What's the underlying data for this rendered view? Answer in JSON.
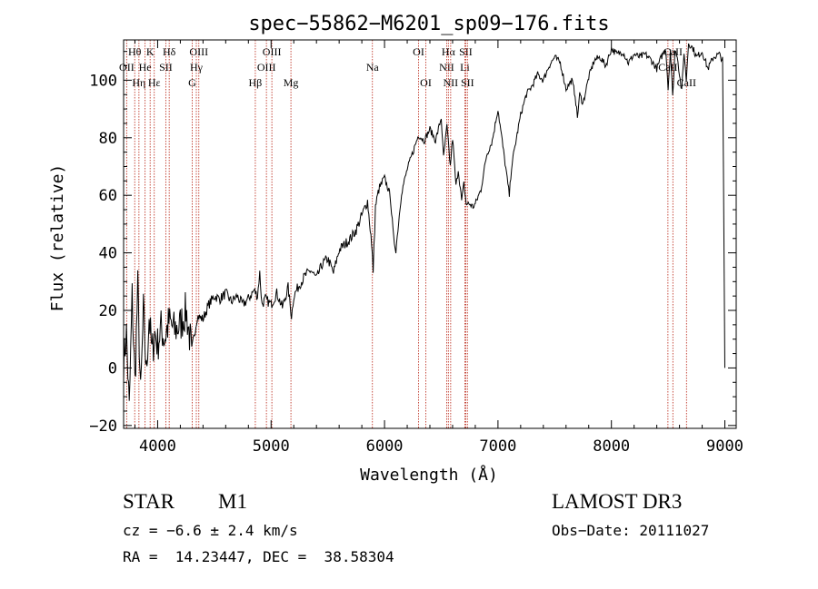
{
  "chart_data": {
    "type": "line",
    "title": "spec−55862−M6201_sp09−176.fits",
    "xlabel": "Wavelength (Å)",
    "ylabel": "Flux (relative)",
    "xlim": [
      3700,
      9100
    ],
    "ylim": [
      -21,
      114
    ],
    "x_ticks": [
      {
        "value": 4000,
        "label": "4000"
      },
      {
        "value": 5000,
        "label": "5000"
      },
      {
        "value": 6000,
        "label": "6000"
      },
      {
        "value": 7000,
        "label": "7000"
      },
      {
        "value": 8000,
        "label": "8000"
      },
      {
        "value": 9000,
        "label": "9000"
      }
    ],
    "y_ticks": [
      {
        "value": -20,
        "label": "−20"
      },
      {
        "value": 0,
        "label": "0"
      },
      {
        "value": 20,
        "label": "20"
      },
      {
        "value": 40,
        "label": "40"
      },
      {
        "value": 60,
        "label": "60"
      },
      {
        "value": 80,
        "label": "80"
      },
      {
        "value": 100,
        "label": "100"
      }
    ],
    "series": [
      {
        "name": "flux",
        "color": "#000000",
        "x": [
          3700,
          3725,
          3750,
          3775,
          3800,
          3825,
          3850,
          3875,
          3900,
          3925,
          3950,
          3975,
          4000,
          4030,
          4060,
          4100,
          4150,
          4200,
          4250,
          4300,
          4350,
          4400,
          4450,
          4500,
          4550,
          4600,
          4650,
          4700,
          4750,
          4800,
          4850,
          4880,
          4900,
          4920,
          4950,
          5000,
          5050,
          5100,
          5150,
          5180,
          5200,
          5250,
          5300,
          5350,
          5400,
          5450,
          5500,
          5550,
          5600,
          5650,
          5700,
          5750,
          5800,
          5850,
          5880,
          5900,
          5920,
          5950,
          6000,
          6050,
          6080,
          6100,
          6130,
          6150,
          6200,
          6250,
          6300,
          6350,
          6400,
          6450,
          6500,
          6520,
          6550,
          6580,
          6600,
          6630,
          6650,
          6680,
          6700,
          6720,
          6750,
          6780,
          6800,
          6850,
          6900,
          6950,
          7000,
          7050,
          7100,
          7120,
          7150,
          7200,
          7250,
          7300,
          7350,
          7400,
          7450,
          7500,
          7550,
          7600,
          7650,
          7680,
          7700,
          7720,
          7750,
          7800,
          7850,
          7900,
          7950,
          8000,
          8050,
          8100,
          8150,
          8200,
          8250,
          8300,
          8350,
          8400,
          8450,
          8480,
          8500,
          8520,
          8540,
          8560,
          8580,
          8600,
          8620,
          8640,
          8660,
          8680,
          8700,
          8720,
          8750,
          8800,
          8850,
          8900,
          8950,
          8980,
          9000
        ],
        "y": [
          2,
          12,
          -15,
          25,
          -5,
          28,
          -10,
          20,
          -2,
          18,
          5,
          12,
          8,
          14,
          10,
          16,
          13,
          15,
          20,
          6,
          18,
          17,
          22,
          25,
          24,
          26,
          23,
          25,
          22,
          24,
          27,
          25,
          33,
          22,
          24,
          22,
          26,
          21,
          28,
          18,
          25,
          29,
          32,
          34,
          31,
          36,
          38,
          33,
          41,
          43,
          45,
          48,
          53,
          58,
          46,
          34,
          56,
          62,
          66,
          60,
          45,
          41,
          53,
          61,
          69,
          75,
          81,
          79,
          83,
          79,
          87,
          73,
          84,
          70,
          80,
          63,
          69,
          58,
          64,
          57,
          57,
          56,
          57,
          62,
          74,
          79,
          90,
          75,
          60,
          70,
          77,
          88,
          95,
          98,
          102,
          100,
          105,
          108,
          106,
          97,
          100,
          95,
          87,
          95,
          92,
          101,
          107,
          108,
          105,
          111,
          109,
          110,
          106,
          109,
          108,
          109,
          107,
          104,
          109,
          111,
          97,
          111,
          94,
          110,
          109,
          102,
          96,
          110,
          100,
          113,
          112,
          111,
          108,
          110,
          104,
          108,
          109,
          107,
          0
        ]
      }
    ],
    "line_markers": [
      {
        "label": "Hθ",
        "x": 3798,
        "row": 1
      },
      {
        "label": "OII",
        "x": 3727,
        "row": 2
      },
      {
        "label": "Hη",
        "x": 3835,
        "row": 3
      },
      {
        "label": "He",
        "x": 3889,
        "row": 2
      },
      {
        "label": "K",
        "x": 3934,
        "row": 1
      },
      {
        "label": "Hε",
        "x": 3970,
        "row": 3
      },
      {
        "label": "SII",
        "x": 4072,
        "row": 2
      },
      {
        "label": "Hδ",
        "x": 4102,
        "row": 1
      },
      {
        "label": "G",
        "x": 4305,
        "row": 3
      },
      {
        "label": "Hγ",
        "x": 4341,
        "row": 2
      },
      {
        "label": "OIII",
        "x": 4363,
        "row": 1
      },
      {
        "label": "Hβ",
        "x": 4861,
        "row": 3
      },
      {
        "label": "OIII",
        "x": 4959,
        "row": 2
      },
      {
        "label": "OIII",
        "x": 5007,
        "row": 1
      },
      {
        "label": "Mg",
        "x": 5175,
        "row": 3
      },
      {
        "label": "Na",
        "x": 5893,
        "row": 2
      },
      {
        "label": "OI",
        "x": 6300,
        "row": 1
      },
      {
        "label": "OI",
        "x": 6364,
        "row": 3
      },
      {
        "label": "NII",
        "x": 6548,
        "row": 2
      },
      {
        "label": "Hα",
        "x": 6563,
        "row": 1
      },
      {
        "label": "NII",
        "x": 6583,
        "row": 3
      },
      {
        "label": "Li",
        "x": 6708,
        "row": 2
      },
      {
        "label": "SII",
        "x": 6716,
        "row": 1
      },
      {
        "label": "SII",
        "x": 6731,
        "row": 3
      },
      {
        "label": "CaII",
        "x": 8498,
        "row": 2
      },
      {
        "label": "CaII",
        "x": 8542,
        "row": 1
      },
      {
        "label": "CaII",
        "x": 8662,
        "row": 3
      }
    ]
  },
  "captions": {
    "object_class": "STAR",
    "subclass": "M1",
    "survey": "LAMOST DR3",
    "redshift": "cz = −6.6 ± 2.4 km/s",
    "obs_date": "Obs−Date: 20111027",
    "coordinates": "RA =  14.23447, DEC =  38.58304"
  }
}
